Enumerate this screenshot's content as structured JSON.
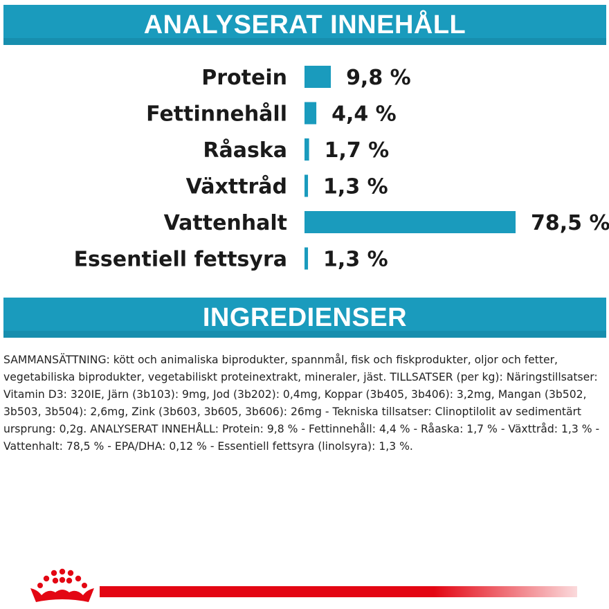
{
  "header": {
    "analysis_title": "ANALYSERAT INNEHÅLL",
    "ingredients_title": "INGREDIENSER"
  },
  "chart_data": {
    "type": "bar",
    "orientation": "horizontal",
    "categories": [
      "Protein",
      "Fettinnehåll",
      "Råaska",
      "Växttråd",
      "Vattenhalt",
      "Essentiell fettsyra"
    ],
    "values": [
      9.8,
      4.4,
      1.7,
      1.3,
      78.5,
      1.3
    ],
    "value_labels": [
      "9,8 %",
      "4,4 %",
      "1,7 %",
      "1,3 %",
      "78,5 %",
      "1,3 %"
    ],
    "unit": "%",
    "bar_color": "#1a9bbd"
  },
  "ingredients": {
    "text": "SAMMANSÄTTNING: kött och animaliska biprodukter, spannmål, fisk och fiskprodukter, oljor och fetter, vegetabiliska biprodukter, vegetabiliskt proteinextrakt, mineraler, jäst. TILLSATSER (per kg): Näringstillsatser: Vitamin D3: 320IE, Järn (3b103): 9mg, Jod (3b202): 0,4mg, Koppar (3b405, 3b406): 3,2mg, Mangan (3b502, 3b503, 3b504): 2,6mg, Zink (3b603, 3b605, 3b606): 26mg - Tekniska tillsatser: Clinoptilolit av sedimentärt ursprung: 0,2g. ANALYSERAT INNEHÅLL: Protein: 9,8 % - Fettinnehåll: 4,4 % - Råaska: 1,7 % - Växttråd: 1,3 % - Vattenhalt: 78,5 % - EPA/DHA: 0,12 % - Essentiell fettsyra (linolsyra): 1,3 %."
  },
  "brand": {
    "crown_color": "#e30613",
    "line_color": "#e30613"
  }
}
